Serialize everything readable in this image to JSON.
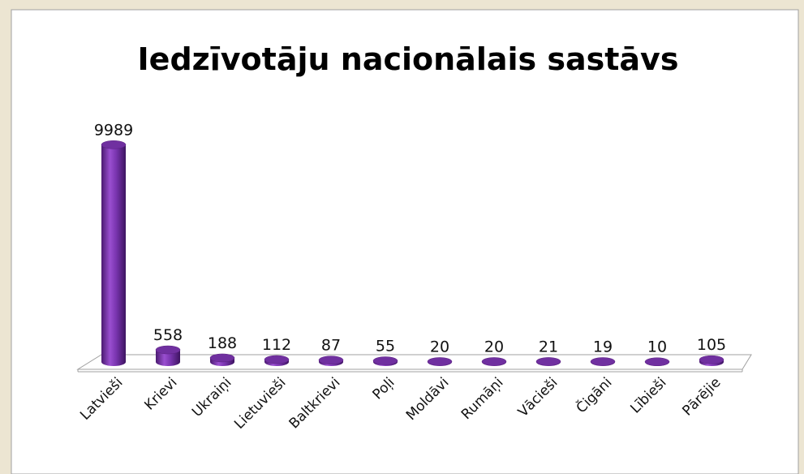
{
  "chart_data": {
    "type": "bar3d",
    "title": "Iedzīvotāju nacionālais sastāvs",
    "categories": [
      "Latvieši",
      "Krievi",
      "Ukraiņi",
      "Lietuvieši",
      "Baltkrievi",
      "Poļi",
      "Moldāvi",
      "Rumāņi",
      "Vācieši",
      "Čigāni",
      "Lībieši",
      "Pārējie"
    ],
    "values": [
      9989,
      558,
      188,
      112,
      87,
      55,
      20,
      20,
      21,
      19,
      10,
      105
    ],
    "color": "#7030a0",
    "ylim": [
      0,
      10000
    ]
  }
}
